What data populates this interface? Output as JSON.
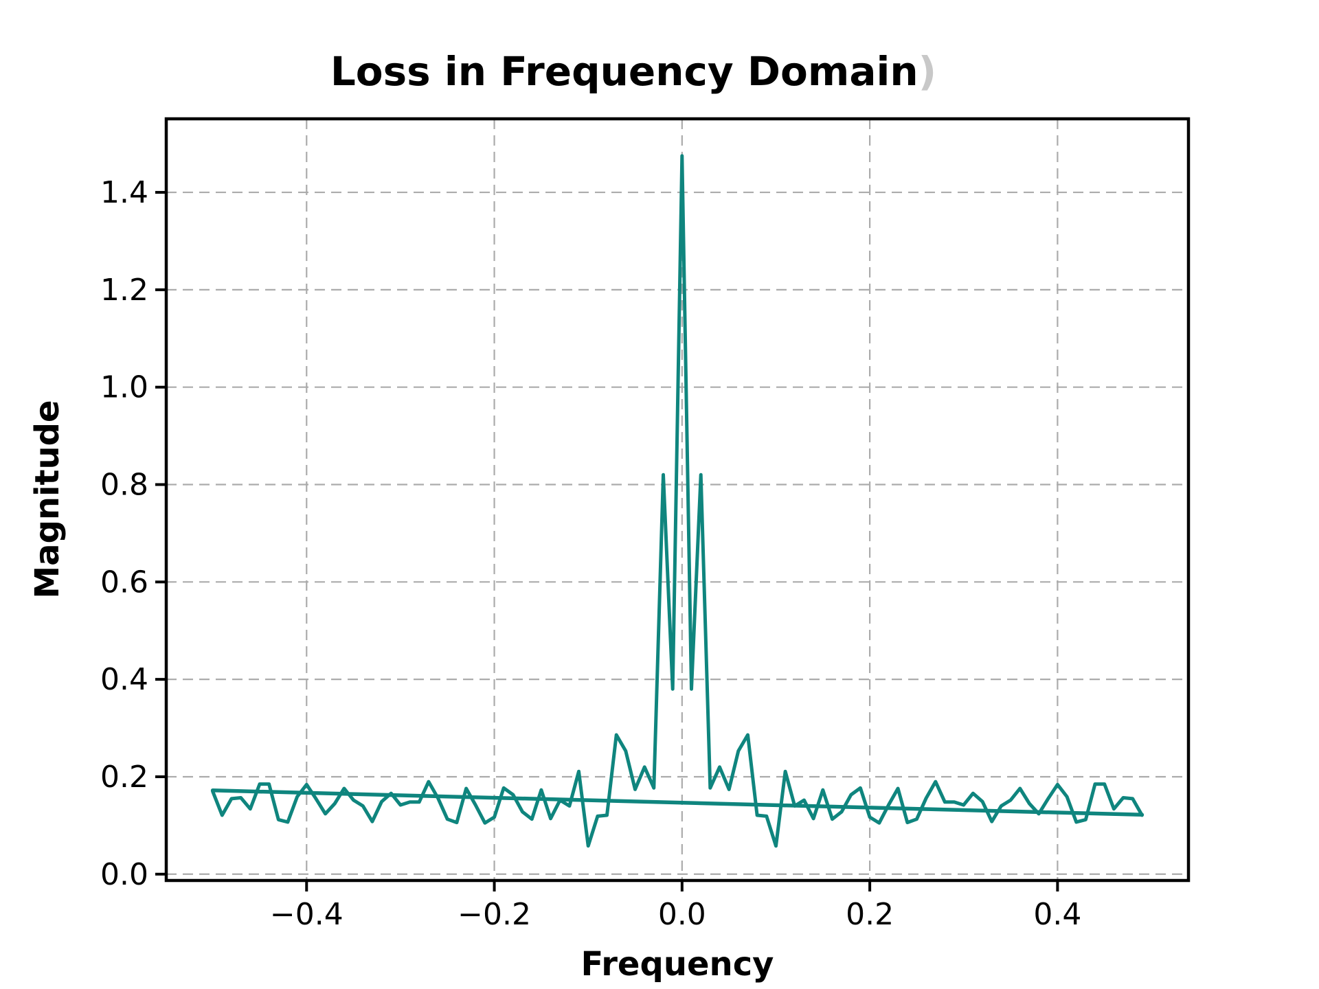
{
  "figure": {
    "title": "Loss in Frequency Domain",
    "title_artifact": ")",
    "x_label": "Frequency",
    "y_label": "Magnitude",
    "background_color": "#ffffff",
    "line_color": "#0f857e",
    "trend_color": "#0f857e",
    "grid_color": "#ababab",
    "spine_color": "#000000",
    "title_artifact_color": "#c8c8c8"
  },
  "chart_data": {
    "type": "line",
    "title": "Loss in Frequency Domain",
    "xlabel": "Frequency",
    "ylabel": "Magnitude",
    "xlim": [
      -0.5495,
      0.5395
    ],
    "ylim": [
      -0.013,
      1.551
    ],
    "x_ticks": [
      -0.4,
      -0.2,
      0.0,
      0.2,
      0.4
    ],
    "y_ticks": [
      0.0,
      0.2,
      0.4,
      0.6,
      0.8,
      1.0,
      1.2,
      1.4
    ],
    "grid": true,
    "legend": "none",
    "series": [
      {
        "name": "fft-magnitude",
        "style": "noisy-line",
        "x_start": -0.5,
        "x_step": 0.01,
        "values": [
          0.17,
          0.121,
          0.155,
          0.157,
          0.134,
          0.185,
          0.185,
          0.112,
          0.107,
          0.159,
          0.184,
          0.155,
          0.124,
          0.145,
          0.176,
          0.152,
          0.14,
          0.108,
          0.149,
          0.166,
          0.142,
          0.148,
          0.148,
          0.19,
          0.156,
          0.113,
          0.106,
          0.176,
          0.142,
          0.105,
          0.117,
          0.177,
          0.163,
          0.128,
          0.113,
          0.173,
          0.114,
          0.152,
          0.14,
          0.211,
          0.058,
          0.119,
          0.121,
          0.286,
          0.253,
          0.174,
          0.22,
          0.177,
          0.82,
          0.38,
          1.475,
          0.38,
          0.82,
          0.177,
          0.22,
          0.174,
          0.253,
          0.286,
          0.121,
          0.119,
          0.058,
          0.211,
          0.14,
          0.152,
          0.114,
          0.173,
          0.113,
          0.128,
          0.163,
          0.177,
          0.117,
          0.105,
          0.142,
          0.176,
          0.106,
          0.113,
          0.156,
          0.19,
          0.148,
          0.148,
          0.142,
          0.166,
          0.149,
          0.108,
          0.14,
          0.152,
          0.176,
          0.145,
          0.124,
          0.155,
          0.184,
          0.159,
          0.107,
          0.112,
          0.185,
          0.185,
          0.134,
          0.157,
          0.155,
          0.121
        ]
      },
      {
        "name": "trend",
        "style": "straight-line",
        "points": [
          [
            -0.5,
            0.172
          ],
          [
            0.49,
            0.122
          ]
        ]
      }
    ]
  }
}
